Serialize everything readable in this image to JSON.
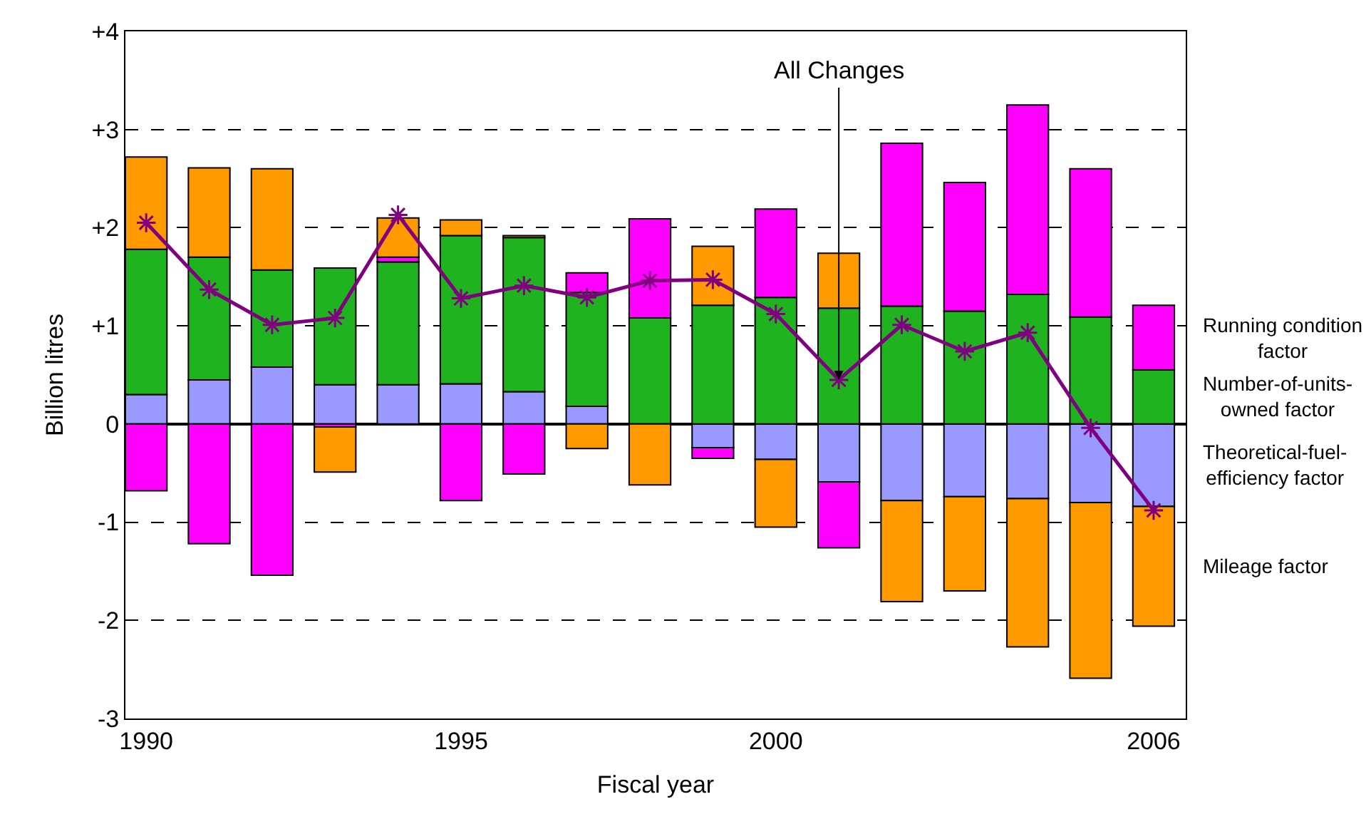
{
  "chart_data": {
    "type": "bar",
    "stacked": true,
    "xlabel": "Fiscal year",
    "ylabel": "Billion litres",
    "x": [
      1990,
      1991,
      1992,
      1993,
      1994,
      1995,
      1996,
      1997,
      1998,
      1999,
      2000,
      2001,
      2002,
      2003,
      2004,
      2005,
      2006
    ],
    "xlim": [
      1989.67,
      2006.51
    ],
    "xticks": [
      1990,
      1995,
      2000,
      2006
    ],
    "ylim": [
      -3,
      4
    ],
    "yticks": [
      {
        "value": 4,
        "label": "+4"
      },
      {
        "value": 3,
        "label": "+3"
      },
      {
        "value": 2,
        "label": "+2"
      },
      {
        "value": 1,
        "label": "+1"
      },
      0,
      -1,
      -2,
      -3
    ],
    "grid": "y",
    "legend": false,
    "series": [
      {
        "name": "Theoretical-fuel-efficiency factor",
        "color": "#9999ff",
        "values": [
          0.3,
          0.45,
          0.58,
          0.4,
          0.4,
          0.41,
          0.33,
          0.18,
          null,
          -0.24,
          -0.36,
          -0.59,
          -0.78,
          -0.74,
          -0.76,
          -0.8,
          -0.84
        ]
      },
      {
        "name": "Number-of-units-owned factor",
        "color": "#1fb31f",
        "values": [
          1.48,
          1.25,
          0.99,
          1.19,
          1.25,
          1.51,
          1.57,
          1.16,
          1.08,
          1.21,
          1.29,
          1.18,
          1.2,
          1.15,
          1.32,
          1.09,
          0.55
        ]
      },
      {
        "name": "Running condition factor",
        "color": "#ff00ff",
        "values": [
          -0.68,
          -1.22,
          -1.54,
          -0.03,
          0.05,
          -0.78,
          -0.51,
          0.2,
          1.01,
          -0.11,
          0.9,
          -0.67,
          1.66,
          1.31,
          1.93,
          1.51,
          0.66
        ]
      },
      {
        "name": "Mileage factor",
        "color": "#ff9900",
        "values": [
          0.94,
          0.91,
          1.03,
          -0.46,
          0.4,
          0.16,
          0.02,
          -0.25,
          -0.62,
          0.6,
          -0.69,
          0.56,
          -1.03,
          -0.96,
          -1.51,
          -1.79,
          -1.22
        ]
      },
      {
        "type": "line",
        "color": "#800080",
        "marker": "cross",
        "values": [
          2.05,
          1.37,
          1.01,
          1.08,
          2.13,
          1.28,
          1.41,
          1.29,
          1.46,
          1.47,
          1.12,
          0.45,
          1.01,
          0.74,
          0.93,
          -0.04,
          -0.88
        ]
      }
    ],
    "annotations": [
      {
        "text": "All Changes",
        "x": 2001,
        "y": 0.45
      }
    ]
  }
}
